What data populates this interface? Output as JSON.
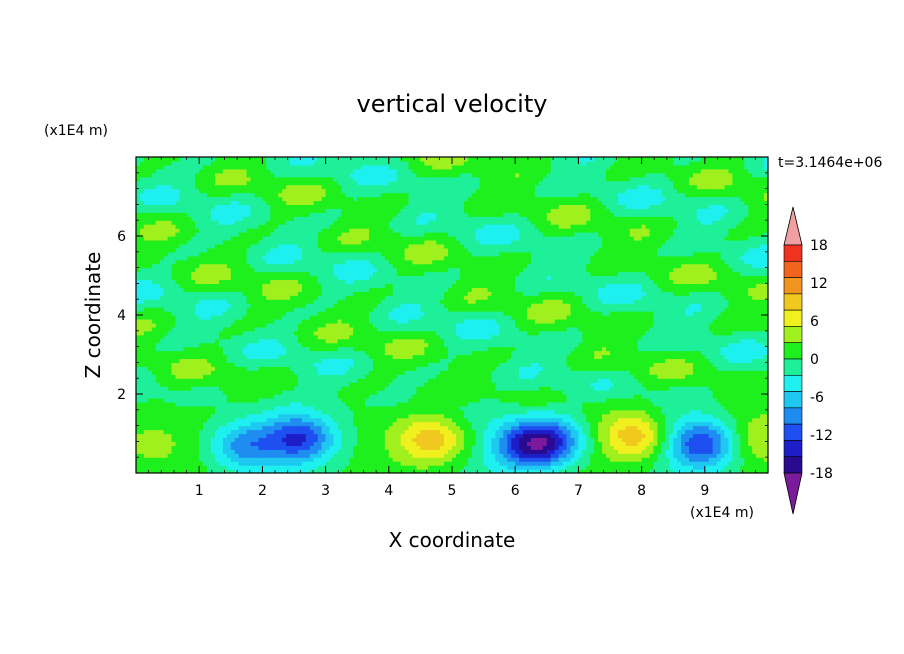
{
  "chart_data": {
    "type": "heatmap",
    "title": "vertical velocity",
    "xlabel": "X coordinate",
    "ylabel": "Z coordinate",
    "x_unit": "(x1E4 m)",
    "y_unit": "(x1E4 m)",
    "time_label": "t=3.1464e+06",
    "xlim": [
      0,
      10
    ],
    "ylim": [
      0,
      8
    ],
    "x_ticks": [
      "1",
      "2",
      "3",
      "4",
      "5",
      "6",
      "7",
      "8",
      "9"
    ],
    "y_ticks": [
      "2",
      "4",
      "6"
    ],
    "colorbar": {
      "labels": [
        "18",
        "12",
        "6",
        "0",
        "-6",
        "-12",
        "-18"
      ],
      "levels": [
        -21,
        -18,
        -15,
        -12,
        -9,
        -6,
        -3,
        0,
        3,
        6,
        9,
        12,
        15,
        18,
        21
      ],
      "colors": [
        "#7c1a9c",
        "#2a0a8f",
        "#1e1ec8",
        "#1e4ff0",
        "#1e8cf0",
        "#1ec8f0",
        "#1ef0f0",
        "#1ef09a",
        "#1ef01e",
        "#a0f01e",
        "#f0f01e",
        "#f0c81e",
        "#f0961e",
        "#f0641e",
        "#f0321e",
        "#f0a0a0"
      ]
    },
    "features": [
      {
        "x": 0.15,
        "z": 0.75,
        "w": 3.5
      },
      {
        "x": 1.7,
        "z": 0.7,
        "w": -10
      },
      {
        "x": 2.6,
        "z": 0.9,
        "w": -14
      },
      {
        "x": 4.7,
        "z": 0.85,
        "w": 11
      },
      {
        "x": 6.2,
        "z": 0.7,
        "w": -14
      },
      {
        "x": 6.6,
        "z": 0.85,
        "w": -12
      },
      {
        "x": 7.9,
        "z": 0.95,
        "w": 11
      },
      {
        "x": 8.95,
        "z": 0.75,
        "w": -14
      },
      {
        "x": 9.85,
        "z": 0.9,
        "w": 5
      }
    ]
  }
}
